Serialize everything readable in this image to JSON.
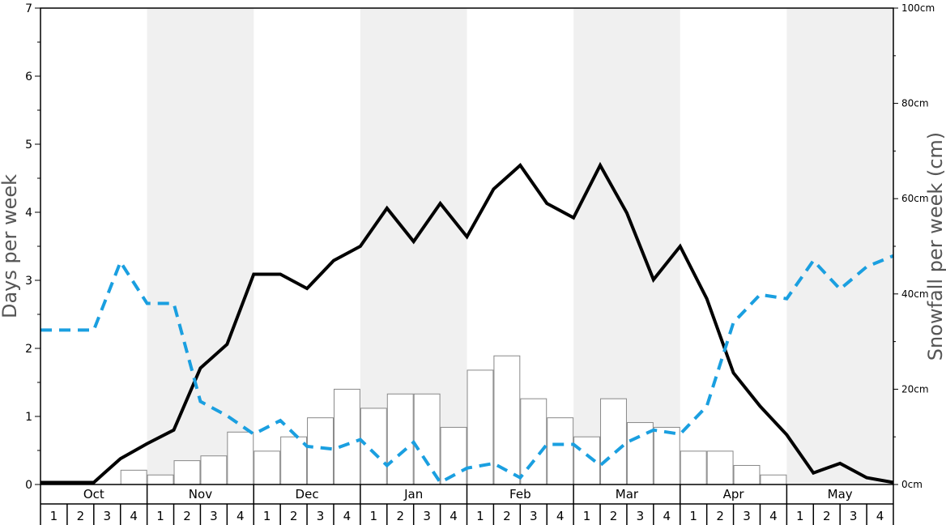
{
  "chart_data": {
    "type": "bar",
    "ylabel": "Days per week",
    "ylabel_right": "Snowfall per week (cm)",
    "ylim": [
      0,
      7
    ],
    "ylim_right": [
      0,
      100
    ],
    "yticks": [
      "0",
      "1",
      "2",
      "3",
      "4",
      "5",
      "6",
      "7"
    ],
    "yticks_right": [
      "0cm",
      "20cm",
      "40cm",
      "60cm",
      "80cm",
      "100cm"
    ],
    "months": [
      "Oct",
      "Nov",
      "Dec",
      "Jan",
      "Feb",
      "Mar",
      "Apr",
      "May"
    ],
    "weeks": [
      "1",
      "2",
      "3",
      "4"
    ],
    "colors": {
      "solid_line": "#000000",
      "dashed_line": "#1a9fe0",
      "shaded_band": "#f0f0f0",
      "bar_fill": "#ffffff",
      "bar_stroke": "#888888"
    },
    "series": [
      {
        "type": "bar",
        "axis": "right",
        "values": [
          0,
          0,
          0,
          3,
          2,
          5,
          6,
          11,
          7,
          10,
          14,
          20,
          16,
          19,
          19,
          12,
          24,
          27,
          18,
          14,
          10,
          18,
          13,
          12,
          7,
          7,
          4,
          2,
          0,
          0,
          0,
          0
        ]
      },
      {
        "type": "line",
        "style": "solid",
        "axis": "left",
        "values": [
          0.03,
          0.03,
          0.03,
          0.38,
          0.6,
          0.8,
          1.71,
          2.06,
          3.09,
          3.09,
          2.88,
          3.29,
          3.5,
          4.06,
          3.57,
          4.13,
          3.64,
          4.34,
          4.69,
          4.13,
          3.92,
          4.69,
          3.99,
          3.01,
          3.5,
          2.73,
          1.64,
          1.15,
          0.73,
          0.17,
          0.31,
          0.1,
          0.03
        ]
      },
      {
        "type": "line",
        "style": "dashed",
        "axis": "left",
        "values": [
          2.27,
          2.27,
          2.27,
          3.27,
          2.66,
          2.66,
          1.22,
          1.01,
          0.74,
          0.94,
          0.56,
          0.52,
          0.66,
          0.28,
          0.62,
          0.03,
          0.24,
          0.31,
          0.1,
          0.59,
          0.59,
          0.28,
          0.62,
          0.8,
          0.74,
          1.15,
          2.38,
          2.79,
          2.73,
          3.29,
          2.87,
          3.2,
          3.36
        ]
      }
    ]
  }
}
